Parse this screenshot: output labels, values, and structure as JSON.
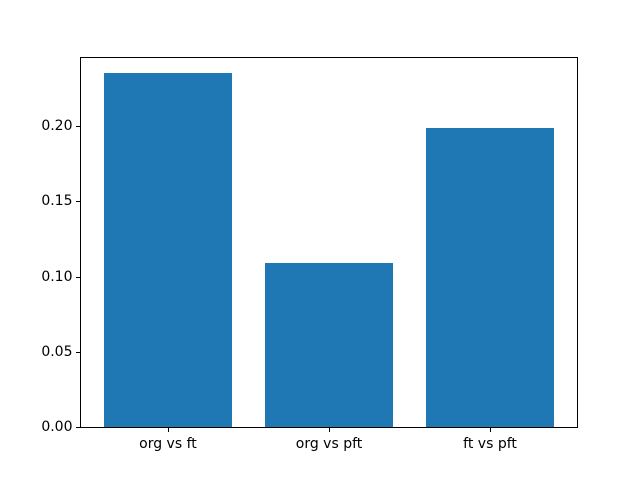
{
  "figure": {
    "background": "#ffffff",
    "spine_color": "#000000",
    "tick_color": "#000000"
  },
  "chart_data": {
    "type": "bar",
    "title": "",
    "xlabel": "",
    "ylabel": "",
    "categories": [
      "org vs ft",
      "org vs pft",
      "ft vs pft"
    ],
    "values": [
      0.235,
      0.109,
      0.199
    ],
    "bar_color": "#1f77b4",
    "bar_width_fraction": 0.8,
    "ylim": [
      0,
      0.2452
    ],
    "yticks": [
      0.0,
      0.05,
      0.1,
      0.15,
      0.2
    ],
    "ytick_labels": [
      "0.00",
      "0.05",
      "0.10",
      "0.15",
      "0.20"
    ],
    "grid": false,
    "legend": null
  }
}
